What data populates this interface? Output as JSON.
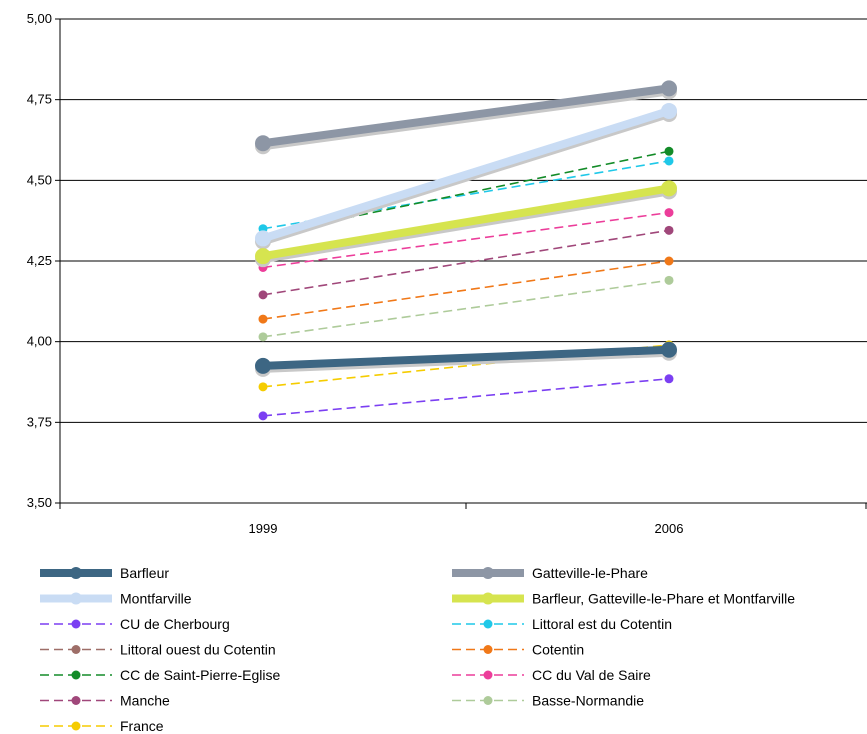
{
  "chart_data": {
    "type": "line",
    "x": [
      "1999",
      "2006"
    ],
    "ylim": [
      3.5,
      5.0
    ],
    "yticks": [
      "3,50",
      "3,75",
      "4,00",
      "4,25",
      "4,50",
      "4,75",
      "5,00"
    ],
    "grid": true,
    "legend_position": "bottom",
    "series": [
      {
        "name": "Barfleur",
        "values": [
          3.925,
          3.975
        ],
        "color": "#3d6683",
        "style": "thick"
      },
      {
        "name": "Gatteville-le-Phare",
        "values": [
          4.615,
          4.785
        ],
        "color": "#8d96a5",
        "style": "thick"
      },
      {
        "name": "Montfarville",
        "values": [
          4.32,
          4.715
        ],
        "color": "#c9dcf4",
        "style": "thick"
      },
      {
        "name": "Barfleur, Gatteville-le-Phare et Montfarville",
        "values": [
          4.265,
          4.475
        ],
        "color": "#d6e44f",
        "style": "thick"
      },
      {
        "name": "CU de Cherbourg",
        "values": [
          3.77,
          3.885
        ],
        "color": "#7b3ff2",
        "style": "dashed"
      },
      {
        "name": "Littoral est du Cotentin",
        "values": [
          4.35,
          4.56
        ],
        "color": "#1fc8e8",
        "style": "dashed"
      },
      {
        "name": "Littoral ouest du Cotentin",
        "values": [
          4.26,
          4.48
        ],
        "color": "#9e6e68",
        "style": "dashed"
      },
      {
        "name": "Cotentin",
        "values": [
          4.07,
          4.25
        ],
        "color": "#f07818",
        "style": "dashed"
      },
      {
        "name": "CC de Saint-Pierre-Eglise",
        "values": [
          4.33,
          4.59
        ],
        "color": "#138b28",
        "style": "dashed"
      },
      {
        "name": "CC du Val de Saire",
        "values": [
          4.23,
          4.4
        ],
        "color": "#ec3d9a",
        "style": "dashed"
      },
      {
        "name": "Manche",
        "values": [
          4.145,
          4.345
        ],
        "color": "#a0477a",
        "style": "dashed"
      },
      {
        "name": "Basse-Normandie",
        "values": [
          4.015,
          4.19
        ],
        "color": "#aecb9a",
        "style": "dashed"
      },
      {
        "name": "France",
        "values": [
          3.86,
          3.99
        ],
        "color": "#f5cc00",
        "style": "dashed"
      }
    ]
  }
}
